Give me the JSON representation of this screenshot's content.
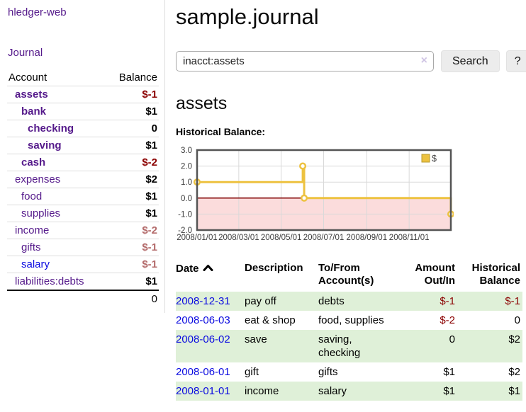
{
  "app": {
    "brand": "hledger-web"
  },
  "colors": {
    "accent_purple": "#551a8b",
    "link_blue": "#0b0be0",
    "negative_strong": "#8b0000",
    "negative_soft": "#b36a6a",
    "row_stripe_green": "#dff0d8",
    "series_gold": "#edc240"
  },
  "sidebar": {
    "journal_link": "Journal",
    "accounts_table": {
      "headers": {
        "account": "Account",
        "balance": "Balance"
      },
      "rows": [
        {
          "name": "assets",
          "depth": 1,
          "bold": true,
          "tone": "visited",
          "balance": "$-1",
          "balance_tone": "neg-strong"
        },
        {
          "name": "bank",
          "depth": 2,
          "bold": true,
          "tone": "visited",
          "balance": "$1",
          "balance_tone": "normal"
        },
        {
          "name": "checking",
          "depth": 3,
          "bold": true,
          "tone": "visited",
          "balance": "0",
          "balance_tone": "normal"
        },
        {
          "name": "saving",
          "depth": 3,
          "bold": true,
          "tone": "visited",
          "balance": "$1",
          "balance_tone": "normal"
        },
        {
          "name": "cash",
          "depth": 2,
          "bold": true,
          "tone": "visited",
          "balance": "$-2",
          "balance_tone": "neg-strong"
        },
        {
          "name": "expenses",
          "depth": 1,
          "bold": false,
          "tone": "visited",
          "balance": "$2",
          "balance_tone": "normal"
        },
        {
          "name": "food",
          "depth": 2,
          "bold": false,
          "tone": "visited",
          "balance": "$1",
          "balance_tone": "normal"
        },
        {
          "name": "supplies",
          "depth": 2,
          "bold": false,
          "tone": "visited",
          "balance": "$1",
          "balance_tone": "normal"
        },
        {
          "name": "income",
          "depth": 1,
          "bold": false,
          "tone": "visited",
          "balance": "$-2",
          "balance_tone": "neg-soft"
        },
        {
          "name": "gifts",
          "depth": 2,
          "bold": false,
          "tone": "visited",
          "balance": "$-1",
          "balance_tone": "neg-soft"
        },
        {
          "name": "salary",
          "depth": 2,
          "bold": false,
          "tone": "unvisited",
          "balance": "$-1",
          "balance_tone": "neg-soft"
        },
        {
          "name": "liabilities:debts",
          "depth": 1,
          "bold": false,
          "tone": "visited",
          "balance": "$1",
          "balance_tone": "normal"
        }
      ],
      "total": "0"
    }
  },
  "header": {
    "title": "sample.journal"
  },
  "search": {
    "value": "inacct:assets",
    "clear_icon": "×",
    "button_label": "Search",
    "help_label": "?"
  },
  "account_page": {
    "heading": "assets",
    "chart_label": "Historical Balance:"
  },
  "chart_data": {
    "type": "line",
    "style": "step",
    "title": "Historical Balance:",
    "x_range": [
      "2008-01-01",
      "2008-12-31"
    ],
    "ylim": [
      -2,
      3
    ],
    "y_ticks": [
      3.0,
      2.0,
      1.0,
      0.0,
      -1.0,
      -2.0
    ],
    "x_ticks": [
      {
        "label": "2008/01/01",
        "date": "2008-01-01"
      },
      {
        "label": "2008/03/01",
        "date": "2008-03-01"
      },
      {
        "label": "2008/05/01",
        "date": "2008-05-01"
      },
      {
        "label": "2008/07/01",
        "date": "2008-07-01"
      },
      {
        "label": "2008/09/01",
        "date": "2008-09-01"
      },
      {
        "label": "2008/11/01",
        "date": "2008-11-01"
      }
    ],
    "series": [
      {
        "name": "$",
        "color": "#edc240",
        "points": [
          [
            "2008-01-01",
            1
          ],
          [
            "2008-06-01",
            2
          ],
          [
            "2008-06-03",
            0
          ],
          [
            "2008-12-31",
            -1
          ]
        ]
      }
    ],
    "legend": {
      "label": "$",
      "position": "top-right"
    },
    "grid": true,
    "colors": {
      "negative_region": "#fbdcdc",
      "zero_line": "#800000",
      "grid": "#d9d9d9",
      "border": "#545454",
      "tick_text": "#3c3c3c",
      "legend_box_border": "#b89b2e",
      "legend_text": "#444444"
    }
  },
  "transactions": {
    "headers": {
      "date": "Date",
      "description": "Description",
      "tofrom": "To/From Account(s)",
      "amount": "Amount Out/In",
      "balance": "Historical Balance"
    },
    "rows": [
      {
        "date": "2008-12-31",
        "description": "pay off",
        "accounts": "debts",
        "amount": "$-1",
        "amount_tone": "neg",
        "balance": "$-1",
        "balance_tone": "neg"
      },
      {
        "date": "2008-06-03",
        "description": "eat & shop",
        "accounts": "food, supplies",
        "amount": "$-2",
        "amount_tone": "neg",
        "balance": "0",
        "balance_tone": "normal"
      },
      {
        "date": "2008-06-02",
        "description": "save",
        "accounts": "saving, checking",
        "amount": "0",
        "amount_tone": "normal",
        "balance": "$2",
        "balance_tone": "normal"
      },
      {
        "date": "2008-06-01",
        "description": "gift",
        "accounts": "gifts",
        "amount": "$1",
        "amount_tone": "normal",
        "balance": "$2",
        "balance_tone": "normal"
      },
      {
        "date": "2008-01-01",
        "description": "income",
        "accounts": "salary",
        "amount": "$1",
        "amount_tone": "normal",
        "balance": "$1",
        "balance_tone": "normal"
      }
    ]
  }
}
